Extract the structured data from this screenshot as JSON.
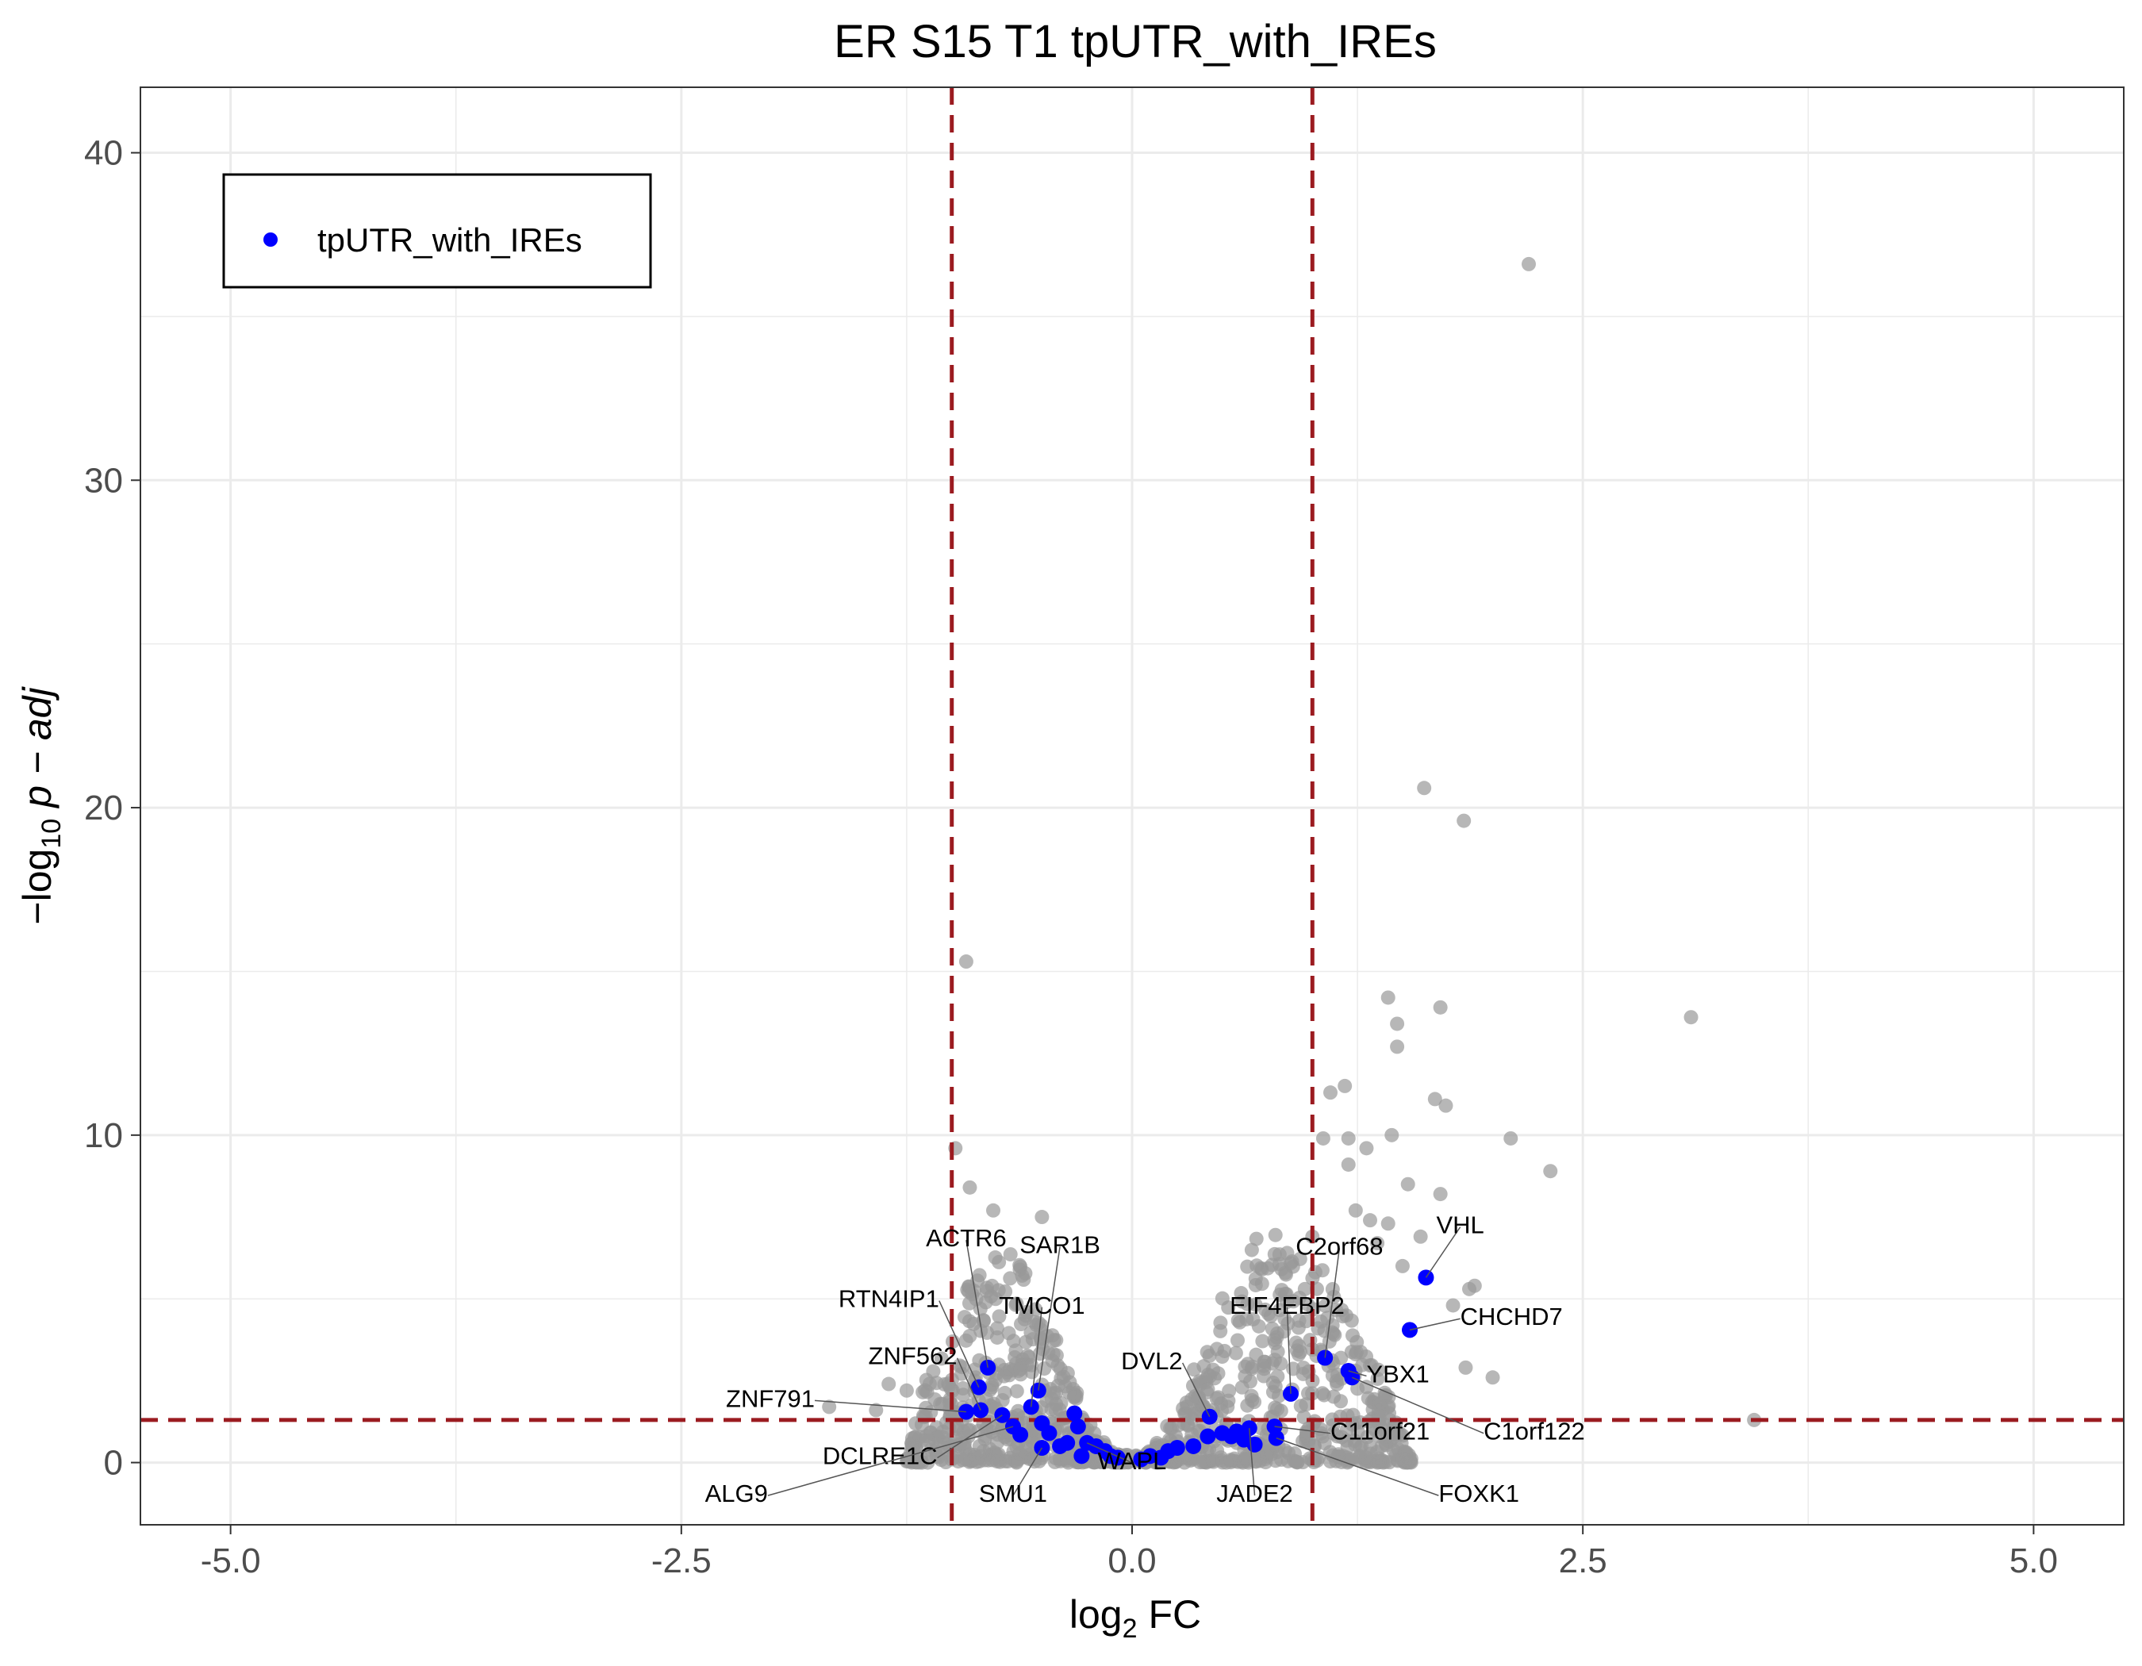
{
  "chart_data": {
    "type": "scatter",
    "title": "ER S15 T1 tpUTR_with_IREs",
    "xlabel": {
      "prefix": "log",
      "sub": "2",
      "suffix": " FC"
    },
    "ylabel": {
      "prefix": "−log",
      "sub": "10",
      "suffix": " p − adj"
    },
    "xlim": [
      -5.5,
      5.5
    ],
    "ylim": [
      -1.9,
      42
    ],
    "x_ticks": [
      -5,
      -2.5,
      0,
      2.5,
      5
    ],
    "x_tick_labels": [
      "-5.0",
      "-2.5",
      "0.0",
      "2.5",
      "5.0"
    ],
    "y_ticks": [
      0,
      10,
      20,
      30,
      40
    ],
    "y_tick_labels": [
      "0",
      "10",
      "20",
      "30",
      "40"
    ],
    "grid": true,
    "thresholds": {
      "fc_low": -1,
      "fc_high": 1,
      "padj_line": 1.3
    },
    "colors": {
      "background": "#999999",
      "highlight": "#0000ff",
      "threshold": "#9b1b20",
      "grid": "#ebebeb"
    },
    "legend": {
      "position": "top-left",
      "entries": [
        {
          "name": "tpUTR_with_IREs",
          "color": "#0000ff"
        }
      ]
    },
    "background_points": [
      [
        2.2,
        36.6
      ],
      [
        1.62,
        20.6
      ],
      [
        1.84,
        19.6
      ],
      [
        -0.92,
        15.3
      ],
      [
        3.1,
        13.6
      ],
      [
        1.42,
        14.2
      ],
      [
        1.71,
        13.9
      ],
      [
        1.47,
        13.4
      ],
      [
        1.47,
        12.7
      ],
      [
        1.18,
        11.5
      ],
      [
        1.1,
        11.3
      ],
      [
        1.68,
        11.1
      ],
      [
        1.74,
        10.9
      ],
      [
        2.1,
        9.9
      ],
      [
        1.3,
        9.6
      ],
      [
        1.44,
        10.0
      ],
      [
        1.2,
        9.9
      ],
      [
        2.32,
        8.9
      ],
      [
        1.2,
        9.1
      ],
      [
        1.06,
        9.9
      ],
      [
        1.53,
        8.5
      ],
      [
        1.71,
        8.2
      ],
      [
        -0.98,
        9.6
      ],
      [
        -0.9,
        8.4
      ],
      [
        -0.77,
        7.7
      ],
      [
        -0.5,
        7.5
      ],
      [
        3.45,
        1.3
      ],
      [
        -1.68,
        1.7
      ],
      [
        -1.35,
        2.4
      ],
      [
        -1.25,
        2.2
      ],
      [
        -1.42,
        1.6
      ],
      [
        1.9,
        5.4
      ],
      [
        1.87,
        5.3
      ],
      [
        2.0,
        2.6
      ],
      [
        1.85,
        2.9
      ],
      [
        1.36,
        6.7
      ],
      [
        1.42,
        7.3
      ],
      [
        1.6,
        6.9
      ],
      [
        1.0,
        6.9
      ],
      [
        1.24,
        7.7
      ],
      [
        1.32,
        7.4
      ],
      [
        0.86,
        6.4
      ],
      [
        0.72,
        5.9
      ],
      [
        1.5,
        6.0
      ],
      [
        1.78,
        4.8
      ]
    ],
    "cluster_left": {
      "count": 520,
      "seed": 11,
      "x_range": [
        -1.25,
        -0.02
      ],
      "center": -0.65,
      "ymax": 6.5
    },
    "cluster_right": {
      "count": 560,
      "seed": 23,
      "x_range": [
        0.02,
        1.55
      ],
      "center": 0.75,
      "ymax": 7.0
    },
    "highlight_points": [
      [
        1.63,
        5.65
      ],
      [
        1.54,
        4.05
      ],
      [
        1.2,
        2.8
      ],
      [
        1.22,
        2.6
      ],
      [
        1.07,
        3.2
      ],
      [
        0.88,
        2.1
      ],
      [
        0.79,
        1.1
      ],
      [
        0.8,
        0.75
      ],
      [
        0.65,
        1.05
      ],
      [
        0.62,
        0.7
      ],
      [
        0.55,
        0.8
      ],
      [
        0.5,
        0.9
      ],
      [
        0.43,
        1.4
      ],
      [
        0.42,
        0.8
      ],
      [
        0.34,
        0.5
      ],
      [
        0.25,
        0.45
      ],
      [
        0.2,
        0.35
      ],
      [
        0.1,
        0.2
      ],
      [
        0.16,
        0.15
      ],
      [
        0.05,
        0.1
      ],
      [
        0.68,
        0.55
      ],
      [
        0.58,
        0.95
      ],
      [
        -0.85,
        2.3
      ],
      [
        -0.8,
        2.9
      ],
      [
        -0.92,
        1.55
      ],
      [
        -0.84,
        1.6
      ],
      [
        -0.72,
        1.45
      ],
      [
        -0.66,
        1.1
      ],
      [
        -0.62,
        0.85
      ],
      [
        -0.52,
        2.2
      ],
      [
        -0.56,
        1.7
      ],
      [
        -0.5,
        1.2
      ],
      [
        -0.46,
        0.9
      ],
      [
        -0.5,
        0.45
      ],
      [
        -0.36,
        0.6
      ],
      [
        -0.32,
        1.5
      ],
      [
        -0.3,
        1.1
      ],
      [
        -0.25,
        0.6
      ],
      [
        -0.2,
        0.5
      ],
      [
        -0.15,
        0.35
      ],
      [
        -0.28,
        0.2
      ],
      [
        -0.4,
        0.5
      ],
      [
        -0.12,
        0.2
      ],
      [
        -0.08,
        0.15
      ]
    ],
    "labels": [
      {
        "text": "VHL",
        "x": 1.63,
        "y": 5.65,
        "lx": 1.82,
        "ly": 7.0,
        "anchor": "middle"
      },
      {
        "text": "CHCHD7",
        "x": 1.54,
        "y": 4.05,
        "lx": 1.82,
        "ly": 4.2,
        "anchor": "start"
      },
      {
        "text": "YBX1",
        "x": 1.2,
        "y": 2.8,
        "lx": 1.3,
        "ly": 2.45,
        "anchor": "start"
      },
      {
        "text": "C1orf122",
        "x": 1.22,
        "y": 2.6,
        "lx": 1.95,
        "ly": 0.7,
        "anchor": "start"
      },
      {
        "text": "C2orf68",
        "x": 1.07,
        "y": 3.2,
        "lx": 1.15,
        "ly": 6.35,
        "anchor": "middle"
      },
      {
        "text": "EIF4EBP2",
        "x": 0.88,
        "y": 2.1,
        "lx": 0.86,
        "ly": 4.55,
        "anchor": "middle"
      },
      {
        "text": "DVL2",
        "x": 0.43,
        "y": 1.4,
        "lx": 0.28,
        "ly": 2.85,
        "anchor": "end"
      },
      {
        "text": "C11orf21",
        "x": 0.79,
        "y": 1.1,
        "lx": 1.1,
        "ly": 0.7,
        "anchor": "start"
      },
      {
        "text": "FOXK1",
        "x": 0.8,
        "y": 0.75,
        "lx": 1.7,
        "ly": -1.2,
        "anchor": "start"
      },
      {
        "text": "JADE2",
        "x": 0.65,
        "y": 1.05,
        "lx": 0.68,
        "ly": -1.2,
        "anchor": "middle"
      },
      {
        "text": "WAPL",
        "x": -0.25,
        "y": 0.6,
        "lx": 0.0,
        "ly": -0.2,
        "anchor": "middle"
      },
      {
        "text": "SMU1",
        "x": -0.5,
        "y": 0.45,
        "lx": -0.66,
        "ly": -1.2,
        "anchor": "middle"
      },
      {
        "text": "ACTR6",
        "x": -0.8,
        "y": 2.9,
        "lx": -0.92,
        "ly": 6.6,
        "anchor": "middle"
      },
      {
        "text": "SAR1B",
        "x": -0.52,
        "y": 2.2,
        "lx": -0.4,
        "ly": 6.4,
        "anchor": "middle"
      },
      {
        "text": "RTN4IP1",
        "x": -0.85,
        "y": 2.3,
        "lx": -1.07,
        "ly": 4.75,
        "anchor": "end"
      },
      {
        "text": "TMCO1",
        "x": -0.56,
        "y": 1.7,
        "lx": -0.5,
        "ly": 4.55,
        "anchor": "middle"
      },
      {
        "text": "ZNF562",
        "x": -0.84,
        "y": 1.6,
        "lx": -0.97,
        "ly": 3.0,
        "anchor": "end"
      },
      {
        "text": "ZNF791",
        "x": -0.92,
        "y": 1.55,
        "lx": -1.76,
        "ly": 1.7,
        "anchor": "end"
      },
      {
        "text": "DCLRE1C",
        "x": -0.72,
        "y": 1.45,
        "lx": -1.08,
        "ly": -0.05,
        "anchor": "end"
      },
      {
        "text": "ALG9",
        "x": -0.66,
        "y": 1.1,
        "lx": -2.02,
        "ly": -1.2,
        "anchor": "end"
      }
    ]
  }
}
